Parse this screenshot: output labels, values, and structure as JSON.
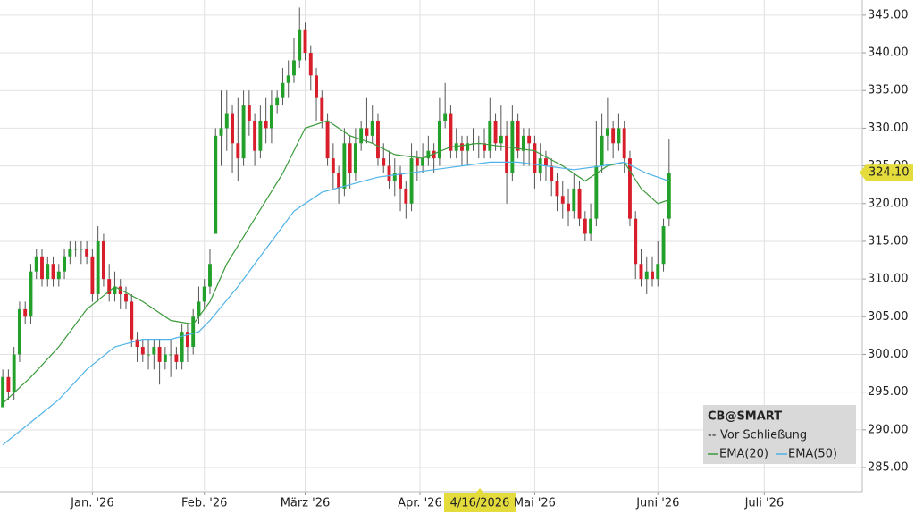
{
  "chart_data": {
    "type": "candlestick",
    "ylim": [
      281.8,
      347.0
    ],
    "xlim": [
      -0.5,
      153.5
    ],
    "yticks": [
      {
        "value": 285,
        "label": "285.00"
      },
      {
        "value": 290,
        "label": "290.00"
      },
      {
        "value": 295,
        "label": "295.00"
      },
      {
        "value": 300,
        "label": "300.00"
      },
      {
        "value": 305,
        "label": "305.00"
      },
      {
        "value": 310,
        "label": "310.00"
      },
      {
        "value": 315,
        "label": "315.00"
      },
      {
        "value": 320,
        "label": "320.00"
      },
      {
        "value": 325,
        "label": "325.00"
      },
      {
        "value": 330,
        "label": "330.00"
      },
      {
        "value": 335,
        "label": "335.00"
      },
      {
        "value": 340,
        "label": "340.00"
      },
      {
        "value": 345,
        "label": "345.00"
      }
    ],
    "xticks": [
      {
        "value": 16,
        "label": "Jan. '26"
      },
      {
        "value": 36,
        "label": "Feb. '26"
      },
      {
        "value": 54,
        "label": "März '26"
      },
      {
        "value": 74.5,
        "label": "Apr. '26"
      },
      {
        "value": 95,
        "label": "Mai '26"
      },
      {
        "value": 117,
        "label": "Juni '26"
      },
      {
        "value": 136,
        "label": "Juli '26"
      }
    ],
    "grid": true,
    "up_color": "#22a02a",
    "down_color": "#d81e2a",
    "open": [
      293,
      297,
      295,
      300,
      306,
      305,
      311,
      313,
      310,
      312,
      310,
      311,
      313,
      314,
      314,
      314,
      313,
      308,
      315,
      310,
      308,
      309,
      308,
      307,
      302,
      301,
      300,
      300,
      301,
      299,
      300,
      300,
      299,
      303,
      301,
      305,
      307,
      309,
      316,
      329,
      330,
      332,
      328,
      326,
      333,
      331,
      327,
      331,
      330,
      333,
      334,
      336,
      337,
      339,
      343,
      340,
      337,
      334,
      331,
      326,
      324,
      322,
      328,
      324,
      328,
      330,
      329,
      331,
      326,
      325,
      323,
      324,
      322,
      320,
      326,
      325,
      326,
      327,
      326,
      331,
      332,
      327,
      328,
      327,
      328,
      328,
      328,
      327,
      331,
      328,
      329,
      324,
      331,
      327,
      329,
      328,
      324,
      326,
      325,
      323,
      321,
      320,
      319,
      322,
      318,
      316,
      318,
      325,
      329,
      330,
      328,
      330,
      326,
      318,
      312,
      310,
      311,
      310,
      312,
      318
    ],
    "high": [
      298,
      298,
      301,
      307,
      307,
      312,
      314,
      314,
      313,
      313,
      312,
      314,
      315,
      315,
      315,
      315,
      314,
      317,
      316,
      312,
      311,
      310,
      309,
      308,
      303,
      302,
      302,
      302,
      302,
      301,
      302,
      301,
      304,
      304,
      306,
      309,
      310,
      314,
      330,
      335,
      335,
      333,
      334,
      335,
      335,
      332,
      333,
      334,
      335,
      335,
      338,
      339,
      342,
      346,
      344,
      341,
      338,
      335,
      332,
      328,
      325,
      330,
      329,
      330,
      331,
      334,
      333,
      332,
      328,
      327,
      326,
      325,
      323,
      328,
      327,
      328,
      329,
      328,
      334,
      336,
      333,
      330,
      329,
      329,
      330,
      329,
      330,
      334,
      332,
      333,
      331,
      333,
      332,
      330,
      330,
      329,
      328,
      327,
      326,
      324,
      323,
      322,
      324,
      323,
      319,
      320,
      331,
      332,
      334,
      331,
      332,
      331,
      327,
      319,
      314,
      313,
      313,
      315,
      318,
      328.5
    ],
    "low": [
      293,
      294,
      294,
      299,
      304,
      304,
      310,
      309,
      309,
      309,
      309,
      310,
      312,
      313,
      312,
      312,
      307,
      307,
      309,
      307,
      307,
      306,
      306,
      301,
      299,
      299,
      298,
      298,
      296,
      298,
      297,
      298,
      298,
      299,
      300,
      304,
      306,
      308,
      316,
      325,
      327,
      324,
      323,
      325,
      329,
      325,
      326,
      328,
      328,
      332,
      333,
      334,
      336,
      338,
      339,
      335,
      331,
      330,
      325,
      322,
      320,
      321,
      322,
      323,
      327,
      328,
      328,
      325,
      324,
      322,
      321,
      319,
      318,
      319,
      323,
      324,
      325,
      324,
      325,
      330,
      326,
      326,
      325,
      325,
      327,
      326,
      326,
      326,
      327,
      327,
      320,
      323,
      326,
      325,
      325,
      322,
      323,
      323,
      321,
      319,
      318,
      317,
      318,
      317,
      315,
      315,
      317,
      324,
      327,
      326,
      327,
      324,
      317,
      310,
      309,
      308,
      309,
      309,
      311,
      317
    ],
    "close": [
      297,
      295,
      300,
      306,
      305,
      311,
      313,
      310,
      312,
      310,
      311,
      313,
      314,
      314,
      314,
      313,
      308,
      315,
      310,
      308,
      309,
      308,
      307,
      302,
      301,
      300,
      300,
      301,
      299,
      300,
      300,
      299,
      303,
      301,
      305,
      307,
      309,
      312,
      329,
      330,
      332,
      328,
      326,
      333,
      331,
      327,
      331,
      330,
      333,
      334,
      336,
      337,
      339,
      343,
      340,
      337,
      334,
      331,
      326,
      324,
      322,
      328,
      324,
      328,
      330,
      329,
      331,
      326,
      325,
      323,
      324,
      322,
      320,
      326,
      325,
      326,
      327,
      326,
      331,
      332,
      327,
      328,
      327,
      328,
      328,
      328,
      327,
      331,
      328,
      329,
      324,
      331,
      327,
      329,
      328,
      324,
      326,
      325,
      323,
      321,
      320,
      319,
      322,
      318,
      316,
      318,
      325,
      329,
      330,
      328,
      330,
      326,
      318,
      312,
      310,
      311,
      310,
      312,
      317,
      324.1
    ],
    "last_label": "324.10",
    "crosshair_date": "4/16/2026",
    "legend_title": "CB@SMART",
    "legend_close": "Vor Schließung",
    "series": [
      {
        "name": "EMA(20)",
        "color": "#3c9a3c",
        "x": [
          0,
          5,
          10,
          15,
          20,
          25,
          30,
          34,
          37,
          40,
          45,
          50,
          54,
          58,
          62,
          66,
          70,
          75,
          80,
          85,
          90,
          95,
          100,
          104,
          108,
          111,
          114,
          117,
          119
        ],
        "values": [
          293.5,
          297,
          301,
          306,
          309,
          307,
          304.5,
          304,
          307,
          312,
          318,
          324,
          330,
          331,
          329,
          328,
          326.5,
          326,
          327.5,
          328,
          327.5,
          327,
          325,
          323,
          325,
          325.5,
          322,
          320,
          320.5
        ]
      },
      {
        "name": "EMA(50)",
        "color": "#4fb3e8",
        "x": [
          0,
          5,
          10,
          15,
          20,
          25,
          30,
          35,
          37,
          42,
          47,
          52,
          57,
          62,
          67,
          72,
          77,
          82,
          87,
          92,
          97,
          102,
          107,
          111,
          115,
          119
        ],
        "values": [
          288,
          291,
          294,
          298,
          301,
          302,
          302,
          303,
          304.5,
          309,
          314,
          319,
          321.5,
          322.5,
          323.5,
          324,
          324.5,
          325,
          325.5,
          325.5,
          325,
          324.5,
          325,
          325.5,
          324,
          323
        ]
      }
    ]
  }
}
